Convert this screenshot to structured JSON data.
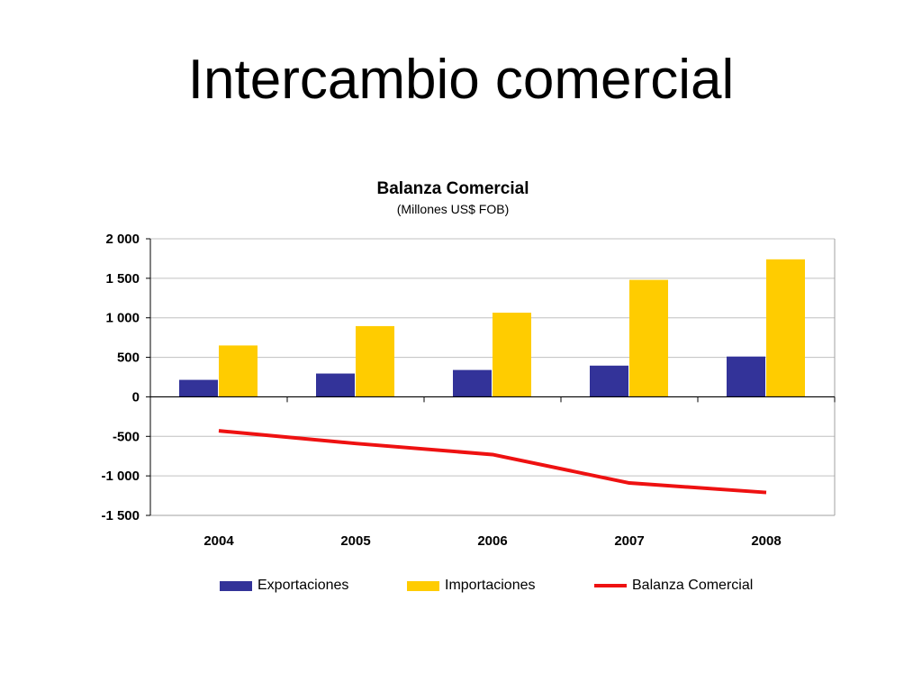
{
  "slide": {
    "title": "Intercambio comercial"
  },
  "colors": {
    "exports": "#333399",
    "imports": "#ffcc00",
    "balance": "#ee1111",
    "grid": "#c0c0c0"
  },
  "chart_data": {
    "type": "bar",
    "title": "Balanza Comercial",
    "subtitle": "(Millones US$ FOB)",
    "categories": [
      "2004",
      "2005",
      "2006",
      "2007",
      "2008"
    ],
    "ylim": [
      -1500,
      2000
    ],
    "yticks": [
      2000,
      1500,
      1000,
      500,
      0,
      -500,
      -1000,
      -1500
    ],
    "ytick_labels": [
      "2 000",
      "1 500",
      "1 000",
      "500",
      "0",
      "-500",
      "-1 000",
      "-1 500"
    ],
    "grid": true,
    "legend_position": "bottom",
    "series": [
      {
        "name": "Exportaciones",
        "type": "bar",
        "values": [
          215,
          295,
          340,
          395,
          510
        ]
      },
      {
        "name": "Importaciones",
        "type": "bar",
        "values": [
          650,
          895,
          1065,
          1480,
          1740
        ]
      },
      {
        "name": "Balanza Comercial",
        "type": "line",
        "values": [
          -430,
          -590,
          -730,
          -1090,
          -1210
        ]
      }
    ]
  }
}
